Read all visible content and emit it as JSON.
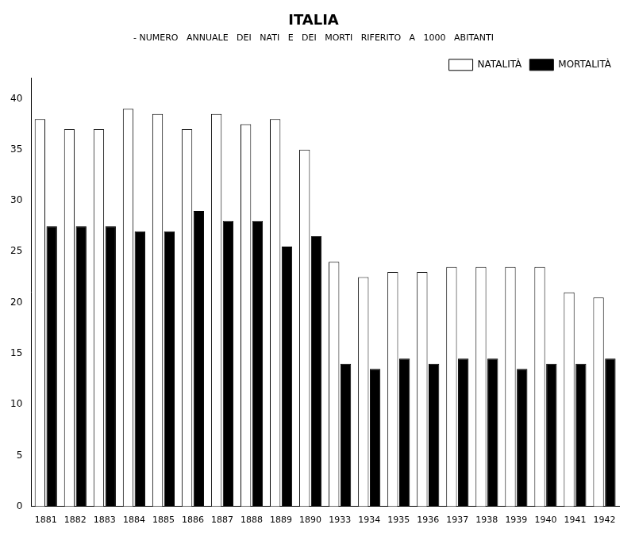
{
  "chart_data": {
    "type": "bar",
    "title": "ITALIA",
    "subtitle": "- NUMERO   ANNUALE   DEI   NATI   E   DEI   MORTI   RIFERITO   A   1000   ABITANTI",
    "categories": [
      "1881",
      "1882",
      "1883",
      "1884",
      "1885",
      "1886",
      "1887",
      "1888",
      "1889",
      "1890",
      "1933",
      "1934",
      "1935",
      "1936",
      "1937",
      "1938",
      "1939",
      "1940",
      "1941",
      "1942"
    ],
    "series": [
      {
        "name": "NATALITÀ",
        "color": "#ffffff",
        "values": [
          38.0,
          37.0,
          37.0,
          39.0,
          38.5,
          37.0,
          38.5,
          37.5,
          38.0,
          35.0,
          24.0,
          22.5,
          23.0,
          23.0,
          23.5,
          23.5,
          23.5,
          23.5,
          21.0,
          20.5
        ]
      },
      {
        "name": "MORTALITÀ",
        "color": "#000000",
        "values": [
          27.5,
          27.5,
          27.5,
          27.0,
          27.0,
          29.0,
          28.0,
          28.0,
          25.5,
          26.5,
          14.0,
          13.5,
          14.5,
          14.0,
          14.5,
          14.5,
          13.5,
          14.0,
          14.0,
          14.5
        ]
      }
    ],
    "ylim": [
      0,
      42
    ],
    "yticks": [
      0,
      5,
      10,
      15,
      20,
      25,
      30,
      35,
      40
    ],
    "grid": false,
    "legend": "upper right"
  }
}
